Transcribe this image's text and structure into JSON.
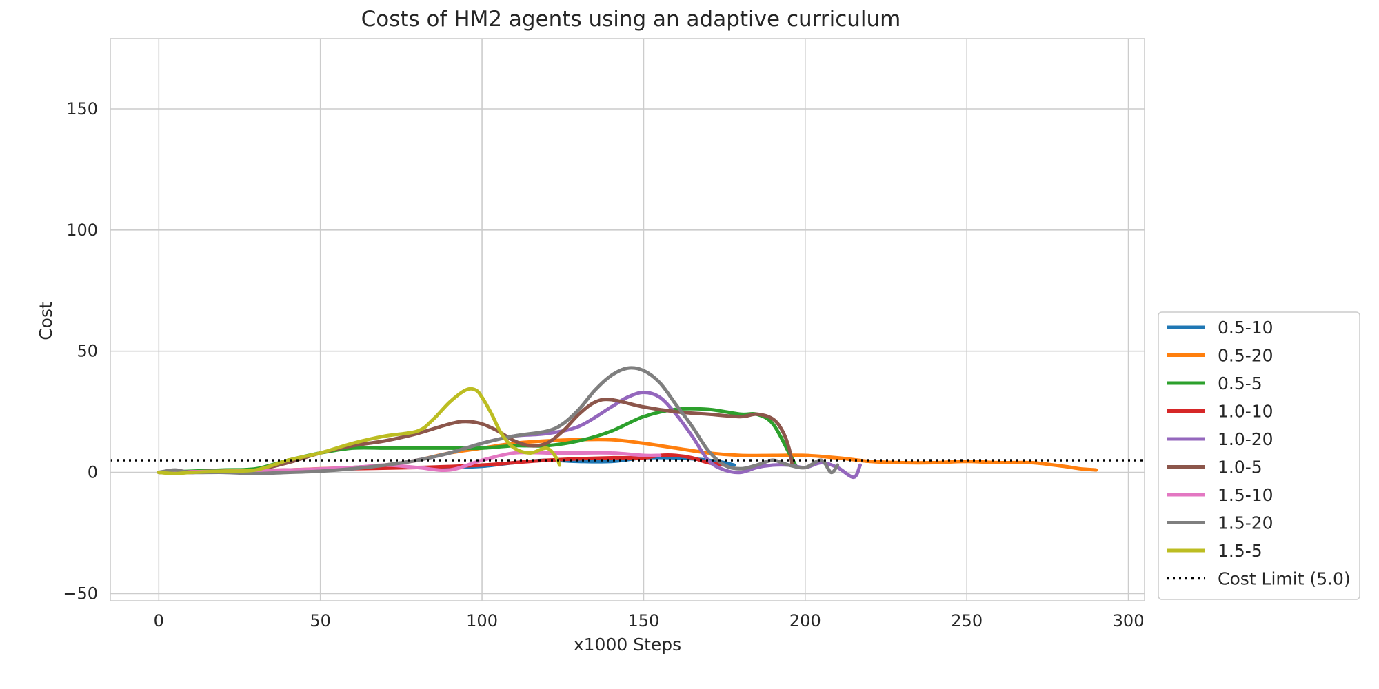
{
  "chart_data": {
    "type": "line",
    "title": "Costs of HM2 agents using an adaptive curriculum",
    "xlabel": "x1000 Steps",
    "ylabel": "Cost",
    "xlim": [
      -15,
      305
    ],
    "ylim": [
      -53,
      179
    ],
    "xticks": [
      0,
      50,
      100,
      150,
      200,
      250,
      300
    ],
    "xtick_labels": [
      "0",
      "50",
      "100",
      "150",
      "200",
      "250",
      "300"
    ],
    "yticks": [
      -50,
      0,
      50,
      100,
      150
    ],
    "ytick_labels": [
      "−50",
      "0",
      "50",
      "100",
      "150"
    ],
    "grid": true,
    "legend_position": "lower-right-outside",
    "series": [
      {
        "name": "0.5-10",
        "color": "#1f77b4",
        "x": [
          0,
          10,
          20,
          30,
          40,
          50,
          60,
          70,
          80,
          90,
          100,
          110,
          120,
          130,
          140,
          150,
          160,
          170,
          175,
          178
        ],
        "y": [
          0,
          0,
          0.5,
          0.5,
          1,
          1,
          1.5,
          2,
          2,
          2,
          2.5,
          4,
          5,
          4.5,
          4.5,
          6,
          6,
          5,
          4,
          3
        ]
      },
      {
        "name": "0.5-20",
        "color": "#ff7f0e",
        "x": [
          0,
          10,
          20,
          30,
          40,
          50,
          60,
          70,
          80,
          90,
          100,
          110,
          120,
          130,
          140,
          150,
          160,
          170,
          180,
          190,
          200,
          210,
          220,
          230,
          240,
          250,
          260,
          270,
          280,
          285,
          290
        ],
        "y": [
          0,
          0,
          0.5,
          0.5,
          1,
          1.5,
          2,
          3,
          5,
          8,
          10,
          12,
          13,
          13.5,
          13.5,
          12,
          10,
          8,
          7,
          7,
          7,
          6,
          4.5,
          4,
          4,
          4.5,
          4,
          4,
          2.5,
          1.5,
          1
        ]
      },
      {
        "name": "0.5-5",
        "color": "#2ca02c",
        "x": [
          0,
          10,
          20,
          30,
          40,
          50,
          60,
          70,
          80,
          90,
          100,
          110,
          120,
          130,
          140,
          150,
          160,
          170,
          180,
          185,
          190,
          195,
          197
        ],
        "y": [
          0,
          0.5,
          1,
          1.5,
          5,
          8,
          10,
          10,
          10,
          10,
          10,
          11,
          11,
          13,
          17,
          23,
          26,
          26,
          24,
          24,
          20,
          8,
          3
        ]
      },
      {
        "name": "1.0-10",
        "color": "#d62728",
        "x": [
          0,
          20,
          40,
          60,
          80,
          100,
          120,
          140,
          150,
          155,
          160,
          165,
          170,
          175
        ],
        "y": [
          0,
          0.5,
          1,
          1.5,
          2,
          3,
          5,
          6,
          6,
          7,
          7,
          6,
          4,
          3
        ]
      },
      {
        "name": "1.0-20",
        "color": "#9467bd",
        "x": [
          0,
          10,
          20,
          30,
          40,
          50,
          60,
          70,
          80,
          90,
          100,
          110,
          120,
          130,
          140,
          145,
          150,
          155,
          160,
          165,
          170,
          175,
          180,
          185,
          190,
          195,
          200,
          205,
          210,
          215,
          217
        ],
        "y": [
          0,
          0,
          0.5,
          0.5,
          1,
          1,
          2,
          3,
          5,
          8,
          12,
          15,
          16,
          19,
          27,
          31,
          33,
          31,
          24,
          15,
          5,
          1,
          0,
          2,
          3,
          3,
          2,
          4,
          2,
          -2,
          3
        ]
      },
      {
        "name": "1.0-5",
        "color": "#8c564b",
        "x": [
          0,
          10,
          20,
          30,
          40,
          50,
          60,
          70,
          80,
          90,
          95,
          100,
          105,
          110,
          115,
          120,
          125,
          130,
          135,
          140,
          150,
          160,
          170,
          180,
          185,
          190,
          193,
          195,
          196
        ],
        "y": [
          0,
          0,
          0.5,
          1,
          4,
          8,
          11,
          13,
          16,
          20,
          21,
          20,
          17,
          13,
          11,
          12,
          17,
          24,
          29,
          30,
          27,
          25,
          24,
          23,
          24,
          22,
          17,
          10,
          3
        ]
      },
      {
        "name": "1.5-10",
        "color": "#e377c2",
        "x": [
          0,
          20,
          40,
          60,
          70,
          80,
          90,
          100,
          110,
          120,
          130,
          140,
          150,
          155
        ],
        "y": [
          0,
          0.5,
          1,
          2,
          3,
          2,
          1,
          5,
          8,
          8,
          8,
          8,
          7,
          7
        ]
      },
      {
        "name": "1.5-20",
        "color": "#7f7f7f",
        "x": [
          0,
          5,
          10,
          20,
          30,
          40,
          50,
          60,
          70,
          80,
          90,
          100,
          110,
          120,
          125,
          130,
          135,
          140,
          145,
          150,
          155,
          160,
          165,
          170,
          175,
          180,
          185,
          190,
          195,
          200,
          205,
          208,
          210
        ],
        "y": [
          0,
          1,
          0,
          0,
          -0.5,
          0,
          0.5,
          1.5,
          3,
          5,
          8,
          12,
          15,
          17,
          20,
          26,
          34,
          40,
          43,
          42,
          37,
          28,
          19,
          9,
          3,
          1.5,
          3,
          5,
          3,
          2,
          5,
          0,
          3
        ]
      },
      {
        "name": "1.5-5",
        "color": "#bcbd22",
        "x": [
          0,
          5,
          10,
          20,
          30,
          40,
          50,
          60,
          70,
          80,
          85,
          90,
          95,
          98,
          100,
          103,
          106,
          110,
          115,
          120,
          123,
          124
        ],
        "y": [
          0,
          -0.5,
          0,
          0.5,
          1,
          5,
          8,
          12,
          15,
          17,
          22,
          29,
          34,
          34,
          31,
          24,
          16,
          10,
          8,
          10,
          6,
          3
        ]
      }
    ],
    "reference_line": {
      "name": "Cost Limit (5.0)",
      "y": 5.0,
      "color": "#000000",
      "style": "dotted"
    }
  }
}
